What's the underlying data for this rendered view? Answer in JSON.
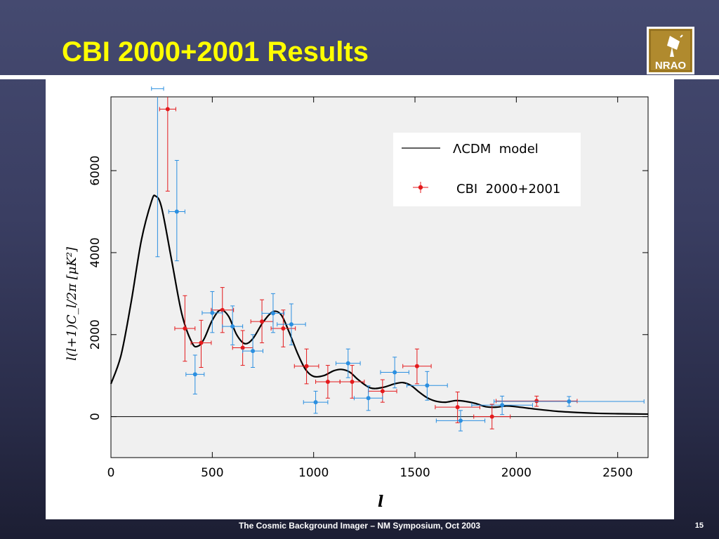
{
  "slide": {
    "title": "CBI 2000+2001 Results",
    "footer": "The Cosmic Background Imager – NM Symposium, Oct 2003",
    "page_number": "15",
    "logo_text": "NRAO"
  },
  "colors": {
    "background_top": "#454a70",
    "title": "#ffff00",
    "model_line": "#000000",
    "series_red": "#e41a1c",
    "series_blue": "#2b8fe0",
    "plot_bg": "#f0f0f0"
  },
  "chart_data": {
    "type": "scatter",
    "title": "",
    "xlabel": "l",
    "ylabel": "l(l+1)C_l/2π [μK²]",
    "xlim": [
      0,
      2650
    ],
    "ylim": [
      -1000,
      7800
    ],
    "xticks": [
      0,
      500,
      1000,
      1500,
      2000,
      2500
    ],
    "yticks": [
      0,
      2000,
      4000,
      6000
    ],
    "grid": false,
    "legend_position": "top-right",
    "legend": [
      "ΛCDM  model",
      "CBI  2000+2001"
    ],
    "model": {
      "name": "ΛCDM  model",
      "x": [
        0,
        50,
        100,
        150,
        200,
        220,
        250,
        300,
        350,
        400,
        430,
        460,
        500,
        540,
        580,
        620,
        660,
        700,
        750,
        800,
        840,
        880,
        920,
        960,
        1000,
        1050,
        1100,
        1140,
        1180,
        1220,
        1280,
        1340,
        1400,
        1440,
        1480,
        1520,
        1560,
        1600,
        1650,
        1700,
        1750,
        1800,
        1850,
        1900,
        1950,
        2000,
        2100,
        2200,
        2300,
        2400,
        2500,
        2650
      ],
      "y": [
        800,
        1500,
        2800,
        4300,
        5250,
        5380,
        5100,
        3800,
        2500,
        1800,
        1720,
        1900,
        2350,
        2600,
        2450,
        2000,
        1780,
        1900,
        2300,
        2560,
        2480,
        2050,
        1550,
        1150,
        980,
        1000,
        1120,
        1150,
        1080,
        900,
        700,
        710,
        800,
        830,
        760,
        600,
        460,
        380,
        350,
        390,
        370,
        320,
        240,
        230,
        260,
        240,
        180,
        130,
        100,
        80,
        70,
        60
      ]
    },
    "series": [
      {
        "name": "CBI  2000+2001",
        "color": "#e41a1c",
        "points": [
          {
            "x": 280,
            "y": 7500,
            "xerr": 40,
            "ylo": 5500,
            "yhi": 8200
          },
          {
            "x": 365,
            "y": 2150,
            "xerr": 50,
            "ylo": 1350,
            "yhi": 2950
          },
          {
            "x": 445,
            "y": 1800,
            "xerr": 50,
            "ylo": 1200,
            "yhi": 2350
          },
          {
            "x": 550,
            "y": 2600,
            "xerr": 55,
            "ylo": 2050,
            "yhi": 3150
          },
          {
            "x": 650,
            "y": 1680,
            "xerr": 50,
            "ylo": 1250,
            "yhi": 2100
          },
          {
            "x": 745,
            "y": 2320,
            "xerr": 55,
            "ylo": 1800,
            "yhi": 2850
          },
          {
            "x": 850,
            "y": 2150,
            "xerr": 60,
            "ylo": 1700,
            "yhi": 2600
          },
          {
            "x": 965,
            "y": 1230,
            "xerr": 60,
            "ylo": 800,
            "yhi": 1650
          },
          {
            "x": 1070,
            "y": 850,
            "xerr": 60,
            "ylo": 450,
            "yhi": 1250
          },
          {
            "x": 1190,
            "y": 850,
            "xerr": 60,
            "ylo": 450,
            "yhi": 1250
          },
          {
            "x": 1340,
            "y": 620,
            "xerr": 70,
            "ylo": 350,
            "yhi": 900
          },
          {
            "x": 1510,
            "y": 1230,
            "xerr": 70,
            "ylo": 800,
            "yhi": 1650
          },
          {
            "x": 1710,
            "y": 230,
            "xerr": 110,
            "ylo": -150,
            "yhi": 600
          },
          {
            "x": 1880,
            "y": 0,
            "xerr": 90,
            "ylo": -300,
            "yhi": 300
          },
          {
            "x": 2100,
            "y": 380,
            "xerr": 200,
            "ylo": 250,
            "yhi": 500
          }
        ]
      },
      {
        "name": "",
        "color": "#2b8fe0",
        "points": [
          {
            "x": 230,
            "y": 8000,
            "xerr": 30,
            "ylo": 3900,
            "yhi": 8200
          },
          {
            "x": 325,
            "y": 5000,
            "xerr": 40,
            "ylo": 3800,
            "yhi": 6250
          },
          {
            "x": 415,
            "y": 1030,
            "xerr": 45,
            "ylo": 550,
            "yhi": 1500
          },
          {
            "x": 500,
            "y": 2530,
            "xerr": 50,
            "ylo": 2050,
            "yhi": 3050
          },
          {
            "x": 600,
            "y": 2200,
            "xerr": 50,
            "ylo": 1750,
            "yhi": 2700
          },
          {
            "x": 700,
            "y": 1600,
            "xerr": 50,
            "ylo": 1200,
            "yhi": 2000
          },
          {
            "x": 800,
            "y": 2520,
            "xerr": 55,
            "ylo": 2050,
            "yhi": 3000
          },
          {
            "x": 890,
            "y": 2250,
            "xerr": 70,
            "ylo": 1750,
            "yhi": 2750
          },
          {
            "x": 1010,
            "y": 350,
            "xerr": 60,
            "ylo": 80,
            "yhi": 620
          },
          {
            "x": 1170,
            "y": 1300,
            "xerr": 60,
            "ylo": 950,
            "yhi": 1650
          },
          {
            "x": 1270,
            "y": 450,
            "xerr": 70,
            "ylo": 150,
            "yhi": 750
          },
          {
            "x": 1400,
            "y": 1080,
            "xerr": 70,
            "ylo": 700,
            "yhi": 1450
          },
          {
            "x": 1560,
            "y": 760,
            "xerr": 100,
            "ylo": 400,
            "yhi": 1100
          },
          {
            "x": 1725,
            "y": -100,
            "xerr": 120,
            "ylo": -350,
            "yhi": 150
          },
          {
            "x": 1930,
            "y": 280,
            "xerr": 150,
            "ylo": 50,
            "yhi": 500
          },
          {
            "x": 2260,
            "y": 370,
            "xerr": 370,
            "ylo": 250,
            "yhi": 490
          }
        ]
      }
    ]
  }
}
